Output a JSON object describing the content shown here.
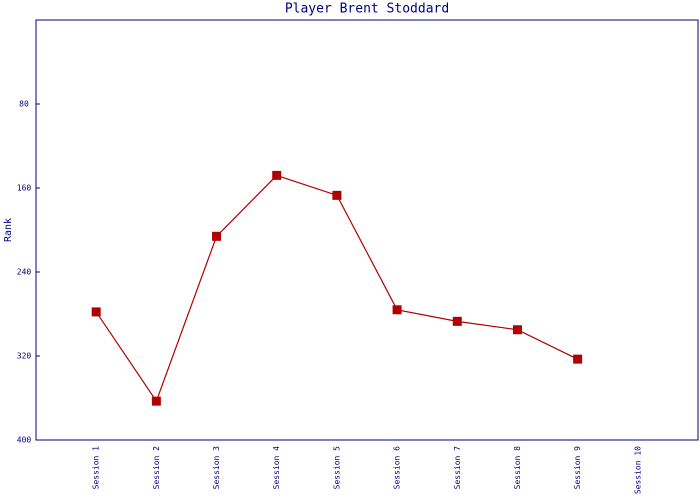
{
  "chart_data": {
    "type": "line",
    "title": "Player Brent Stoddard",
    "y_label": "Rank",
    "categories": [
      "Session 1",
      "Session 2",
      "Session 3",
      "Session 4",
      "Session 5",
      "Session 6",
      "Session 7",
      "Session 8",
      "Session 9",
      "Session 10"
    ],
    "series": [
      {
        "color": "#b00000",
        "values": [
          278,
          363,
          206,
          148,
          167,
          276,
          287,
          295,
          323,
          null
        ]
      }
    ],
    "ylim": [
      0,
      400
    ],
    "yticks": [
      80,
      160,
      240,
      320,
      400
    ],
    "y_inverted": true,
    "grid": false
  }
}
